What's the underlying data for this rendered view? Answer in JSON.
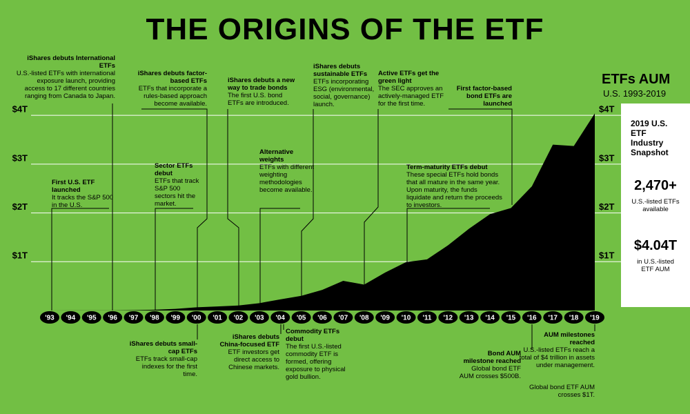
{
  "chart_data": {
    "type": "area",
    "title": "THE ORIGINS OF THE ETF",
    "series_title": "ETFs AUM",
    "subtitle": "U.S. 1993-2019",
    "color": "#000000",
    "categories": [
      "'93",
      "'94",
      "'95",
      "'96",
      "'97",
      "'98",
      "'99",
      "'00",
      "'01",
      "'02",
      "'03",
      "'04",
      "'05",
      "'06",
      "'07",
      "'08",
      "'09",
      "'10",
      "'11",
      "'12",
      "'13",
      "'14",
      "'15",
      "'16",
      "'17",
      "'18",
      "'19"
    ],
    "values": [
      0.0005,
      0.001,
      0.002,
      0.002,
      0.007,
      0.016,
      0.034,
      0.066,
      0.083,
      0.102,
      0.151,
      0.228,
      0.301,
      0.423,
      0.608,
      0.531,
      0.777,
      0.992,
      1.048,
      1.337,
      1.675,
      1.975,
      2.1,
      2.546,
      3.4,
      3.371,
      4.04
    ],
    "ylim": [
      0,
      4.2
    ],
    "yticks": [
      {
        "value": 1,
        "label": "$1T"
      },
      {
        "value": 2,
        "label": "$2T"
      },
      {
        "value": 3,
        "label": "$3T"
      },
      {
        "value": 4,
        "label": "$4T"
      }
    ],
    "grid": true,
    "snapshot": {
      "title": "2019 U.S. ETF Industry Snapshot",
      "stats": [
        {
          "value": "2,470+",
          "label": "U.S.-listed ETFs available"
        },
        {
          "value": "$4.04T",
          "label": "in U.S.-listed ETF AUM"
        }
      ]
    },
    "annotations": [
      {
        "title": "iShares debuts International ETFs",
        "text": "U.S.-listed ETFs with international exposure launch, providing access to 17 different countries ranging from Canada to Japan."
      },
      {
        "title": "First U.S. ETF launched",
        "text": "It tracks the S&P 500 in the U.S."
      },
      {
        "title": "iShares debuts factor-based ETFs",
        "text": "ETFs that incorporate a rules-based approach become available."
      },
      {
        "title": "Sector ETFs debut",
        "text": "ETFs that track S&P 500 sectors hit the market."
      },
      {
        "title": "iShares debuts a new way to trade bonds",
        "text": "The first U.S. bond ETFs are introduced."
      },
      {
        "title": "Alternative weights",
        "text": "ETFs with different weighting methodologies become available."
      },
      {
        "title": "iShares debuts sustainable ETFs",
        "text": "ETFs incorporating ESG (environmental, social, governance) launch."
      },
      {
        "title": "Active ETFs get the green light",
        "text": "The SEC approves an actively-managed ETF for the first time."
      },
      {
        "title": "First factor-based bond ETFs are launched",
        "text": ""
      },
      {
        "title": "Term-maturity ETFs debut",
        "text": "These special ETFs hold bonds that all mature in the same year. Upon maturity, the funds liquidate and return the proceeds to investors."
      },
      {
        "title": "iShares debuts small-cap ETFs",
        "text": "ETFs track small-cap indexes for the first time."
      },
      {
        "title": "iShares debuts China-focused ETF",
        "text": "ETF investors get direct access to Chinese markets."
      },
      {
        "title": "Commodity ETFs debut",
        "text": "The first U.S.-listed commodity ETF is formed, offering exposure to physical gold bullion."
      },
      {
        "title": "Bond AUM milestone reached",
        "text": "Global bond ETF AUM crosses $500B."
      },
      {
        "title": "AUM milestones reached",
        "text": "U.S.-listed ETFs reach a total of $4 trillion in assets under management."
      }
    ],
    "note": "Global bond ETF AUM crosses $1T."
  }
}
